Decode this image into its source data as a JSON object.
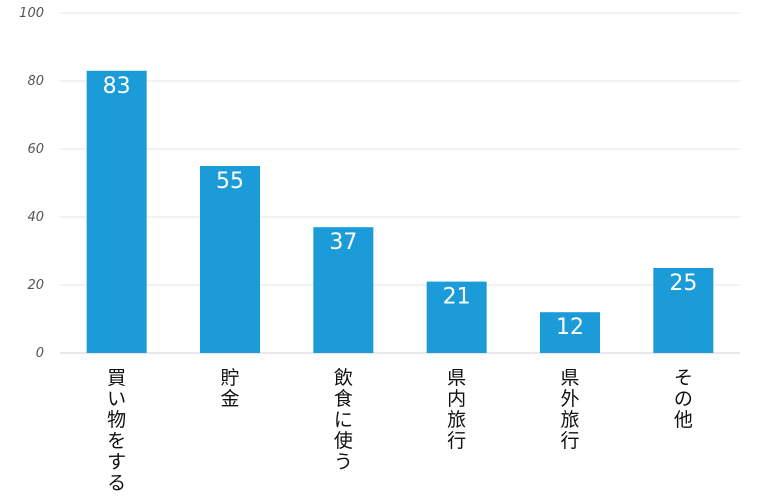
{
  "chart_data": {
    "type": "bar",
    "categories": [
      "買い物をする",
      "貯金",
      "飲食に使う",
      "県内旅行",
      "県外旅行",
      "その他"
    ],
    "values": [
      83,
      55,
      37,
      21,
      12,
      25
    ],
    "ylim": [
      0,
      100
    ],
    "yticks": [
      0,
      20,
      40,
      60,
      80,
      100
    ],
    "grid": true,
    "legend": "none",
    "colors": {
      "bar": "#1b9cd8",
      "label": "#ffffff"
    }
  }
}
